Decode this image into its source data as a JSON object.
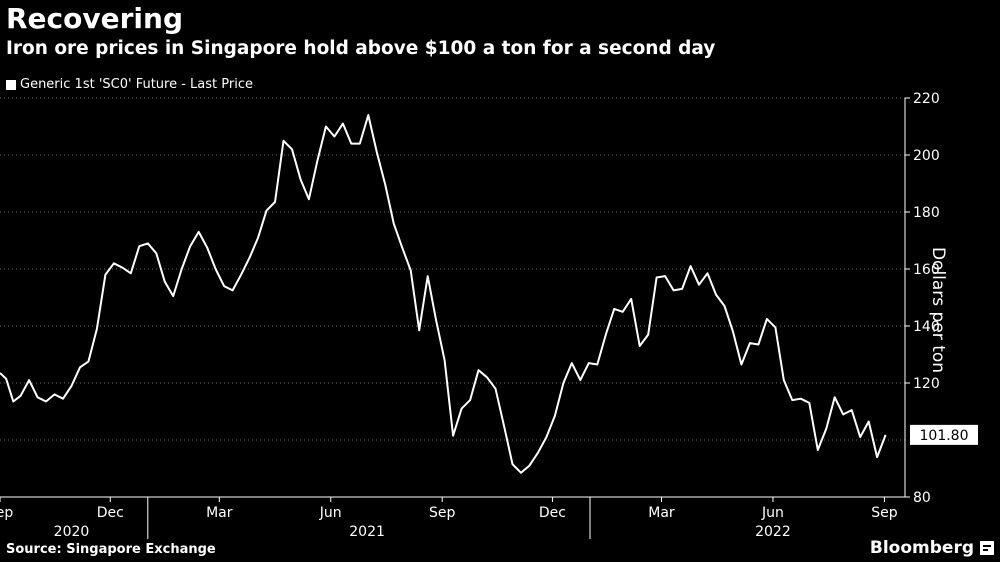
{
  "header": {
    "title": "Recovering",
    "subtitle": "Iron ore prices in Singapore hold above $100 a ton for a second day",
    "legend_label": "Generic 1st 'SC0' Future - Last Price"
  },
  "footer": {
    "source": "Source: Singapore Exchange",
    "brand": "Bloomberg"
  },
  "chart_data": {
    "type": "line",
    "title": "Recovering",
    "subtitle": "Iron ore prices in Singapore hold above $100 a ton for a second day",
    "ylabel": "Dollars per ton",
    "ylim": [
      80,
      220
    ],
    "yticks": [
      80,
      120,
      140,
      160,
      180,
      200,
      220
    ],
    "xlim": [
      "2020-09-01",
      "2022-09-18"
    ],
    "x_tick_labels": [
      {
        "date": "2020-09-01",
        "label": "Sep"
      },
      {
        "date": "2020-12-01",
        "label": "Dec"
      },
      {
        "date": "2021-03-01",
        "label": "Mar"
      },
      {
        "date": "2021-06-01",
        "label": "Jun"
      },
      {
        "date": "2021-09-01",
        "label": "Sep"
      },
      {
        "date": "2021-12-01",
        "label": "Dec"
      },
      {
        "date": "2022-03-01",
        "label": "Mar"
      },
      {
        "date": "2022-06-01",
        "label": "Jun"
      },
      {
        "date": "2022-09-01",
        "label": "Sep"
      }
    ],
    "year_labels": [
      {
        "date": "2020-10-30",
        "label": "2020"
      },
      {
        "date": "2021-07-01",
        "label": "2021"
      },
      {
        "date": "2022-06-01",
        "label": "2022"
      }
    ],
    "year_separators": [
      "2021-01-01",
      "2022-01-01"
    ],
    "grid": "horizontal dotted",
    "legend": "top-left",
    "last_value_label": "101.80",
    "series": [
      {
        "name": "Generic 1st 'SC0' Future - Last Price",
        "color": "#ffffff",
        "points": [
          [
            "2020-09-01",
            123.5
          ],
          [
            "2020-09-06",
            121.5
          ],
          [
            "2020-09-12",
            113.5
          ],
          [
            "2020-09-18",
            115.5
          ],
          [
            "2020-09-25",
            121
          ],
          [
            "2020-10-02",
            115
          ],
          [
            "2020-10-09",
            113.5
          ],
          [
            "2020-10-16",
            116
          ],
          [
            "2020-10-23",
            114.5
          ],
          [
            "2020-10-30",
            119
          ],
          [
            "2020-11-06",
            125.5
          ],
          [
            "2020-11-13",
            127.5
          ],
          [
            "2020-11-20",
            139
          ],
          [
            "2020-11-27",
            158
          ],
          [
            "2020-12-04",
            162
          ],
          [
            "2020-12-11",
            160.5
          ],
          [
            "2020-12-18",
            158.5
          ],
          [
            "2020-12-25",
            168
          ],
          [
            "2021-01-01",
            169
          ],
          [
            "2021-01-08",
            165.5
          ],
          [
            "2021-01-15",
            155.5
          ],
          [
            "2021-01-22",
            150.5
          ],
          [
            "2021-01-29",
            160
          ],
          [
            "2021-02-05",
            168
          ],
          [
            "2021-02-12",
            173
          ],
          [
            "2021-02-19",
            167.5
          ],
          [
            "2021-02-26",
            160
          ],
          [
            "2021-03-05",
            154
          ],
          [
            "2021-03-12",
            152.5
          ],
          [
            "2021-03-19",
            158
          ],
          [
            "2021-03-26",
            164
          ],
          [
            "2021-04-02",
            171
          ],
          [
            "2021-04-09",
            180.5
          ],
          [
            "2021-04-16",
            183.5
          ],
          [
            "2021-04-23",
            205
          ],
          [
            "2021-04-30",
            202
          ],
          [
            "2021-05-07",
            191.5
          ],
          [
            "2021-05-14",
            184.5
          ],
          [
            "2021-05-21",
            198
          ],
          [
            "2021-05-28",
            210
          ],
          [
            "2021-06-04",
            206.5
          ],
          [
            "2021-06-11",
            211
          ],
          [
            "2021-06-18",
            204
          ],
          [
            "2021-06-25",
            204
          ],
          [
            "2021-07-02",
            214
          ],
          [
            "2021-07-09",
            201
          ],
          [
            "2021-07-16",
            189.5
          ],
          [
            "2021-07-23",
            176
          ],
          [
            "2021-07-30",
            167.5
          ],
          [
            "2021-08-06",
            159.5
          ],
          [
            "2021-08-13",
            138.5
          ],
          [
            "2021-08-20",
            157.5
          ],
          [
            "2021-08-27",
            142
          ],
          [
            "2021-09-03",
            128
          ],
          [
            "2021-09-10",
            101.5
          ],
          [
            "2021-09-17",
            111
          ],
          [
            "2021-09-24",
            114
          ],
          [
            "2021-10-01",
            124.5
          ],
          [
            "2021-10-08",
            122
          ],
          [
            "2021-10-15",
            118
          ],
          [
            "2021-10-22",
            105
          ],
          [
            "2021-10-29",
            91.5
          ],
          [
            "2021-11-05",
            88.5
          ],
          [
            "2021-11-12",
            91
          ],
          [
            "2021-11-19",
            95.5
          ],
          [
            "2021-11-26",
            101
          ],
          [
            "2021-12-03",
            108.5
          ],
          [
            "2021-12-10",
            120
          ],
          [
            "2021-12-17",
            127
          ],
          [
            "2021-12-24",
            121
          ],
          [
            "2021-12-31",
            127
          ],
          [
            "2022-01-07",
            126.5
          ],
          [
            "2022-01-14",
            137
          ],
          [
            "2022-01-21",
            146
          ],
          [
            "2022-01-28",
            145
          ],
          [
            "2022-02-04",
            149.5
          ],
          [
            "2022-02-11",
            133
          ],
          [
            "2022-02-18",
            137
          ],
          [
            "2022-02-25",
            157
          ],
          [
            "2022-03-04",
            157.5
          ],
          [
            "2022-03-11",
            152.5
          ],
          [
            "2022-03-18",
            153
          ],
          [
            "2022-03-25",
            161
          ],
          [
            "2022-04-01",
            154.5
          ],
          [
            "2022-04-08",
            158.5
          ],
          [
            "2022-04-15",
            151
          ],
          [
            "2022-04-22",
            147
          ],
          [
            "2022-04-29",
            138
          ],
          [
            "2022-05-06",
            126.5
          ],
          [
            "2022-05-13",
            134
          ],
          [
            "2022-05-20",
            133.5
          ],
          [
            "2022-05-27",
            142.5
          ],
          [
            "2022-06-03",
            139.5
          ],
          [
            "2022-06-10",
            121
          ],
          [
            "2022-06-17",
            114
          ],
          [
            "2022-06-24",
            114.5
          ],
          [
            "2022-07-01",
            113
          ],
          [
            "2022-07-08",
            96.5
          ],
          [
            "2022-07-15",
            104
          ],
          [
            "2022-07-22",
            115
          ],
          [
            "2022-07-29",
            109
          ],
          [
            "2022-08-05",
            110.5
          ],
          [
            "2022-08-12",
            101
          ],
          [
            "2022-08-19",
            106.5
          ],
          [
            "2022-08-26",
            94
          ],
          [
            "2022-09-02",
            101.8
          ]
        ]
      }
    ]
  }
}
